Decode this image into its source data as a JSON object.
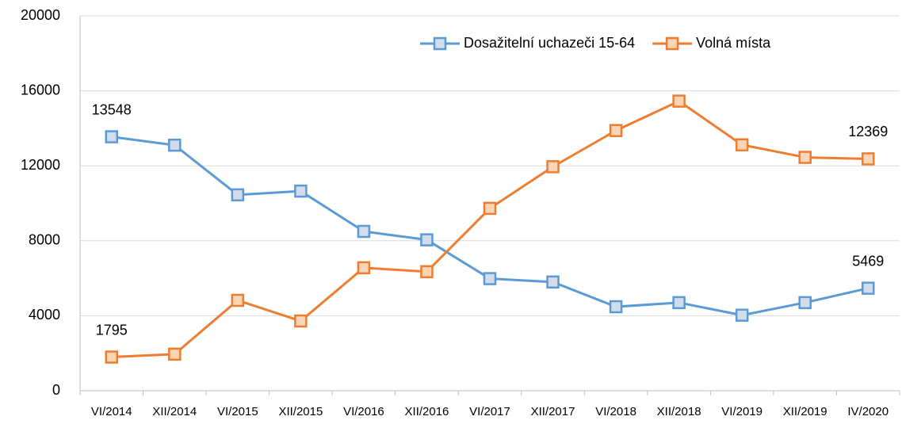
{
  "chart_data": {
    "type": "line",
    "categories": [
      "VI/2014",
      "XII/2014",
      "VI/2015",
      "XII/2015",
      "VI/2016",
      "XII/2016",
      "VI/2017",
      "XII/2017",
      "VI/2018",
      "XII/2018",
      "VI/2019",
      "XII/2019",
      "IV/2020"
    ],
    "series": [
      {
        "name": "Dosažitelní uchazeči 15-64",
        "color": "#5b9bd5",
        "values": [
          13548,
          13100,
          10450,
          10650,
          8500,
          8050,
          5980,
          5800,
          4480,
          4700,
          4030,
          4700,
          5469
        ]
      },
      {
        "name": "Volná místa",
        "color": "#ed7d31",
        "values": [
          1795,
          1950,
          4820,
          3720,
          6560,
          6350,
          9730,
          11950,
          13880,
          15450,
          13120,
          12450,
          12369
        ]
      }
    ],
    "ylim": [
      0,
      20000
    ],
    "yticks": [
      0,
      4000,
      8000,
      12000,
      16000,
      20000
    ],
    "grid": true,
    "legend": "top-right"
  }
}
